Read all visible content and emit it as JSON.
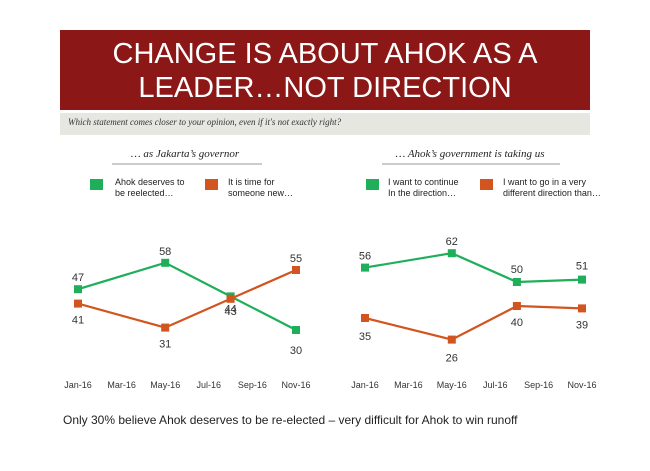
{
  "title": {
    "line1": "CHANGE IS ABOUT AHOK AS A",
    "line2": "LEADER…NOT DIRECTION",
    "bg_color": "#8b1717"
  },
  "question": "Which statement comes closer to your opinion, even if it's not exactly right?",
  "footer": "Only 30% believe Ahok deserves to be re-elected – very difficult for Ahok to win runoff",
  "chart_data": [
    {
      "type": "line",
      "title": "… as Jakarta’s governor",
      "x_ticks": [
        "Jan-16",
        "Mar-16",
        "May-16",
        "Jul-16",
        "Sep-16",
        "Nov-16"
      ],
      "grid": false,
      "legend_position": "top",
      "series": [
        {
          "name": "Ahok deserves to be reelected…",
          "legend_lines": [
            "Ahok deserves to",
            "be reelected…"
          ],
          "color": "#1fae5a",
          "x": [
            "Jan-16",
            "May-16",
            "Aug-16",
            "Nov-16"
          ],
          "values": [
            47,
            58,
            44,
            30
          ],
          "labels": [
            "47",
            "58",
            "44",
            "30"
          ]
        },
        {
          "name": "It is time for someone new…",
          "legend_lines": [
            "It is time for",
            "someone new…"
          ],
          "color": "#d2541f",
          "x": [
            "Jan-16",
            "May-16",
            "Aug-16",
            "Nov-16"
          ],
          "values": [
            41,
            31,
            43,
            55
          ],
          "labels": [
            "41",
            "31",
            "43",
            "55"
          ]
        }
      ]
    },
    {
      "type": "line",
      "title": "… Ahok’s government is taking us",
      "x_ticks": [
        "Jan-16",
        "Mar-16",
        "May-16",
        "Jul-16",
        "Sep-16",
        "Nov-16"
      ],
      "grid": false,
      "legend_position": "top",
      "series": [
        {
          "name": "I want to continue In the direction…",
          "legend_lines": [
            "I want to continue",
            "In the direction…"
          ],
          "color": "#1fae5a",
          "x": [
            "Jan-16",
            "May-16",
            "Aug-16",
            "Nov-16"
          ],
          "values": [
            56,
            62,
            50,
            51
          ],
          "labels": [
            "56",
            "62",
            "50",
            "51"
          ]
        },
        {
          "name": "I want to go in a very different direction than…",
          "legend_lines": [
            "I want to go in a very",
            "different direction than…"
          ],
          "color": "#d2541f",
          "x": [
            "Jan-16",
            "May-16",
            "Aug-16",
            "Nov-16"
          ],
          "values": [
            35,
            26,
            40,
            39
          ],
          "labels": [
            "35",
            "26",
            "40",
            "39"
          ]
        }
      ]
    }
  ]
}
